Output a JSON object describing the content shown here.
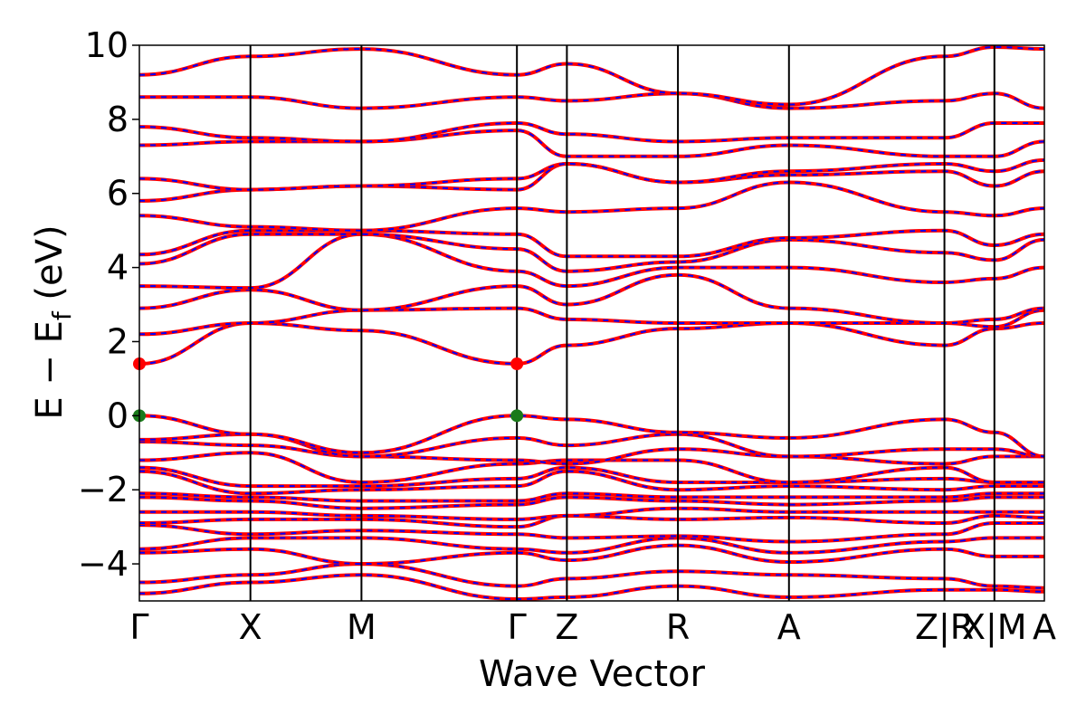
{
  "chart_data": {
    "type": "line",
    "title": "",
    "xlabel": "Wave Vector",
    "ylabel": {
      "main": "E − E",
      "subscript": "f",
      "unit": " (eV)"
    },
    "ylim": [
      -5,
      10
    ],
    "yticks": [
      -4,
      -2,
      0,
      2,
      4,
      6,
      8,
      10
    ],
    "ytick_labels": [
      "−4",
      "−2",
      "0",
      "2",
      "4",
      "6",
      "8",
      "10"
    ],
    "x_segments": [
      {
        "from": "Γ",
        "to": "X",
        "length": 1.0
      },
      {
        "from": "X",
        "to": "M",
        "length": 1.0
      },
      {
        "from": "M",
        "to": "Γ",
        "length": 1.4
      },
      {
        "from": "Γ",
        "to": "Z",
        "length": 0.45
      },
      {
        "from": "Z",
        "to": "R",
        "length": 1.0
      },
      {
        "from": "R",
        "to": "A",
        "length": 1.0
      },
      {
        "from": "A",
        "to": "Z",
        "length": 1.4
      },
      {
        "from": "R",
        "to": "X",
        "length": 0.45
      },
      {
        "from": "M",
        "to": "A",
        "length": 0.45
      }
    ],
    "kpoints": [
      {
        "label": "Γ",
        "x": 0.0
      },
      {
        "label": "X",
        "x": 1.0
      },
      {
        "label": "M",
        "x": 2.0
      },
      {
        "label": "Γ",
        "x": 3.4
      },
      {
        "label": "Z",
        "x": 3.85
      },
      {
        "label": "R",
        "x": 4.85
      },
      {
        "label": "A",
        "x": 5.85
      },
      {
        "label": "Z|R",
        "x": 7.25
      },
      {
        "label": "X|M",
        "x": 7.7
      },
      {
        "label": "A",
        "x": 8.15
      }
    ],
    "grid": false,
    "legend": "none",
    "colors": {
      "band_red": "#ff0000",
      "band_blue": "#0000ff",
      "vbm_marker": "#1a7a1a",
      "cbm_marker": "#ff0000",
      "kpath_line": "#000000"
    },
    "vbm": [
      {
        "x": 0.0,
        "y": 0.0
      },
      {
        "x": 3.4,
        "y": 0.0
      }
    ],
    "cbm": [
      {
        "x": 0.0,
        "y": 1.4
      },
      {
        "x": 3.4,
        "y": 1.4
      }
    ],
    "bands": [
      {
        "y": [
          -4.8,
          -4.5,
          -4.3,
          -4.95,
          -4.9,
          -4.6,
          -4.9,
          -4.7,
          -4.7,
          -4.75
        ]
      },
      {
        "y": [
          -4.5,
          -4.3,
          -4.0,
          -4.6,
          -4.4,
          -4.2,
          -4.3,
          -4.4,
          -4.6,
          -4.65
        ]
      },
      {
        "y": [
          -3.7,
          -3.6,
          -4.0,
          -3.7,
          -3.9,
          -3.5,
          -3.95,
          -3.6,
          -3.8,
          -3.8
        ]
      },
      {
        "y": [
          -3.6,
          -3.3,
          -3.3,
          -3.6,
          -3.7,
          -3.3,
          -3.7,
          -3.4,
          -3.3,
          -3.3
        ]
      },
      {
        "y": [
          -2.95,
          -3.2,
          -3.1,
          -3.2,
          -3.3,
          -3.25,
          -3.4,
          -3.2,
          -2.9,
          -2.9
        ]
      },
      {
        "y": [
          -2.9,
          -2.8,
          -2.8,
          -3.0,
          -2.7,
          -2.8,
          -2.75,
          -2.9,
          -2.7,
          -2.75
        ]
      },
      {
        "y": [
          -2.6,
          -2.6,
          -2.7,
          -2.8,
          -2.7,
          -2.5,
          -2.6,
          -2.6,
          -2.6,
          -2.6
        ]
      },
      {
        "y": [
          -2.2,
          -2.3,
          -2.5,
          -2.4,
          -2.2,
          -2.3,
          -2.4,
          -2.3,
          -2.2,
          -2.2
        ]
      },
      {
        "y": [
          -2.1,
          -2.2,
          -2.3,
          -2.3,
          -2.1,
          -2.2,
          -2.2,
          -2.2,
          -2.1,
          -2.1
        ]
      },
      {
        "y": [
          -1.5,
          -2.1,
          -2.0,
          -1.9,
          -1.5,
          -2.0,
          -1.9,
          -2.0,
          -1.9,
          -1.9
        ]
      },
      {
        "y": [
          -1.4,
          -1.9,
          -1.9,
          -1.7,
          -1.4,
          -1.8,
          -1.8,
          -1.7,
          -1.8,
          -1.8
        ]
      },
      {
        "y": [
          -1.2,
          -1.0,
          -1.8,
          -1.3,
          -1.2,
          -1.2,
          -1.8,
          -1.4,
          -1.8,
          -1.8
        ]
      },
      {
        "y": [
          -0.7,
          -0.8,
          -1.1,
          -1.2,
          -1.3,
          -0.9,
          -1.1,
          -1.3,
          -1.1,
          -1.1
        ]
      },
      {
        "y": [
          -0.65,
          -0.5,
          -1.1,
          -0.6,
          -0.8,
          -0.5,
          -1.1,
          -0.9,
          -0.9,
          -1.1
        ]
      },
      {
        "y": [
          0.0,
          -0.5,
          -1.0,
          0.0,
          -0.1,
          -0.45,
          -0.6,
          -0.1,
          -0.45,
          -1.1
        ]
      },
      {
        "y": [
          1.4,
          2.5,
          2.3,
          1.4,
          1.9,
          2.35,
          2.5,
          1.9,
          2.35,
          2.5
        ]
      },
      {
        "y": [
          2.2,
          2.5,
          2.85,
          2.9,
          2.6,
          2.5,
          2.5,
          2.5,
          2.4,
          2.85
        ]
      },
      {
        "y": [
          2.9,
          3.4,
          2.85,
          3.5,
          3.0,
          3.8,
          2.9,
          2.5,
          2.6,
          2.9
        ]
      },
      {
        "y": [
          3.5,
          3.45,
          4.9,
          3.9,
          3.5,
          4.0,
          4.0,
          3.6,
          3.7,
          4.0
        ]
      },
      {
        "y": [
          4.1,
          4.9,
          4.9,
          4.5,
          3.9,
          4.15,
          4.75,
          4.4,
          4.2,
          4.75
        ]
      },
      {
        "y": [
          4.35,
          5.0,
          5.0,
          4.9,
          4.3,
          4.3,
          4.8,
          5.0,
          4.6,
          4.9
        ]
      },
      {
        "y": [
          5.4,
          5.1,
          5.0,
          5.6,
          5.5,
          5.6,
          6.3,
          5.5,
          5.4,
          5.6
        ]
      },
      {
        "y": [
          5.8,
          6.1,
          6.2,
          6.1,
          6.8,
          6.3,
          6.5,
          6.6,
          6.2,
          6.6
        ]
      },
      {
        "y": [
          6.4,
          6.1,
          6.2,
          6.4,
          6.8,
          6.3,
          6.6,
          6.8,
          6.6,
          6.9
        ]
      },
      {
        "y": [
          7.3,
          7.4,
          7.4,
          7.7,
          7.0,
          7.0,
          7.3,
          7.0,
          7.0,
          7.4
        ]
      },
      {
        "y": [
          7.8,
          7.5,
          7.4,
          7.9,
          7.6,
          7.4,
          7.5,
          7.5,
          7.9,
          7.9
        ]
      },
      {
        "y": [
          8.6,
          8.6,
          8.3,
          8.6,
          8.5,
          8.7,
          8.3,
          8.5,
          8.7,
          8.3
        ]
      },
      {
        "y": [
          9.2,
          9.7,
          9.9,
          9.2,
          9.5,
          8.7,
          8.4,
          9.7,
          9.95,
          9.9
        ]
      }
    ]
  }
}
